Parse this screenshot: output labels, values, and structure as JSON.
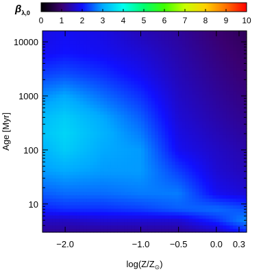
{
  "chart_data": {
    "type": "heatmap",
    "colorbar": {
      "label": "β",
      "label_subscript": "λ,0",
      "range": [
        0,
        10
      ],
      "ticks": [
        0,
        1,
        2,
        3,
        4,
        5,
        6,
        7,
        8,
        9,
        10
      ],
      "tick_labels": [
        "0",
        "1",
        "2",
        "3",
        "4",
        "5",
        "6",
        "7",
        "8",
        "9",
        "10"
      ],
      "colormap": [
        "#000000",
        "#3a0070",
        "#1010ff",
        "#00aaff",
        "#00ffee",
        "#00ff70",
        "#40ff00",
        "#c8ff00",
        "#ffd000",
        "#ff7000",
        "#ff0000"
      ]
    },
    "xlabel": "log(Z/Z",
    "xlabel_subscript": "⊙",
    "xlabel_suffix": ")",
    "xlim": [
      -2.3,
      0.4
    ],
    "xticks": [
      -2.0,
      -1.0,
      -0.5,
      0.0,
      0.3
    ],
    "xtick_labels": [
      "−2.0",
      "−1.0",
      "−0.5",
      "0.0",
      "0.3"
    ],
    "ylabel": "Age",
    "ylabel_unit": "[Myr]",
    "yscale": "log",
    "ylim": [
      3,
      16000
    ],
    "yticks": [
      10,
      100,
      1000,
      10000
    ],
    "ytick_labels": [
      "10",
      "100",
      "1000",
      "10000"
    ],
    "grid": false,
    "z_samples": [
      {
        "logZ": -2.3,
        "logAge": [
          0.5,
          0.7,
          0.9,
          1.2,
          1.6,
          2.0,
          2.3,
          2.6,
          3.0,
          3.4,
          3.8,
          4.2
        ],
        "beta": [
          1.3,
          1.6,
          2.1,
          2.5,
          2.9,
          3.1,
          3.3,
          3.2,
          2.8,
          2.3,
          1.9,
          1.8
        ]
      },
      {
        "logZ": -2.0,
        "logAge": [
          0.5,
          0.7,
          0.9,
          1.2,
          1.6,
          2.0,
          2.3,
          2.6,
          3.0,
          3.4,
          3.8,
          4.2
        ],
        "beta": [
          1.3,
          1.6,
          2.2,
          2.6,
          3.0,
          3.4,
          3.5,
          3.4,
          3.0,
          2.4,
          2.0,
          1.9
        ]
      },
      {
        "logZ": -1.5,
        "logAge": [
          0.5,
          0.7,
          0.9,
          1.2,
          1.6,
          2.0,
          2.3,
          2.6,
          3.0,
          3.4,
          3.8,
          4.2
        ],
        "beta": [
          1.3,
          1.7,
          2.2,
          2.6,
          2.9,
          3.0,
          3.1,
          3.0,
          2.6,
          2.2,
          1.9,
          1.8
        ]
      },
      {
        "logZ": -1.0,
        "logAge": [
          0.5,
          0.7,
          0.9,
          1.2,
          1.6,
          2.0,
          2.3,
          2.6,
          3.0,
          3.4,
          3.8,
          4.2
        ],
        "beta": [
          1.3,
          1.7,
          2.3,
          2.7,
          2.9,
          2.9,
          2.7,
          2.5,
          2.2,
          1.9,
          1.7,
          1.5
        ]
      },
      {
        "logZ": -0.5,
        "logAge": [
          0.5,
          0.7,
          0.9,
          1.2,
          1.6,
          2.0,
          2.3,
          2.6,
          3.0,
          3.4,
          3.8,
          4.2
        ],
        "beta": [
          1.3,
          1.7,
          2.5,
          2.7,
          2.3,
          1.9,
          1.8,
          1.7,
          1.6,
          1.5,
          1.4,
          1.3
        ]
      },
      {
        "logZ": 0.0,
        "logAge": [
          0.5,
          0.7,
          0.9,
          1.2,
          1.6,
          2.0,
          2.3,
          2.6,
          3.0,
          3.4,
          3.8,
          4.2
        ],
        "beta": [
          1.6,
          2.2,
          2.6,
          1.9,
          1.7,
          1.6,
          1.5,
          1.4,
          1.3,
          1.2,
          1.1,
          1.0
        ]
      },
      {
        "logZ": 0.4,
        "logAge": [
          0.5,
          0.7,
          0.9,
          1.2,
          1.6,
          2.0,
          2.3,
          2.6,
          3.0,
          3.4,
          3.8,
          4.2
        ],
        "beta": [
          2.2,
          2.8,
          2.4,
          1.7,
          1.5,
          1.4,
          1.3,
          1.2,
          1.1,
          1.0,
          0.9,
          0.8
        ]
      }
    ]
  }
}
